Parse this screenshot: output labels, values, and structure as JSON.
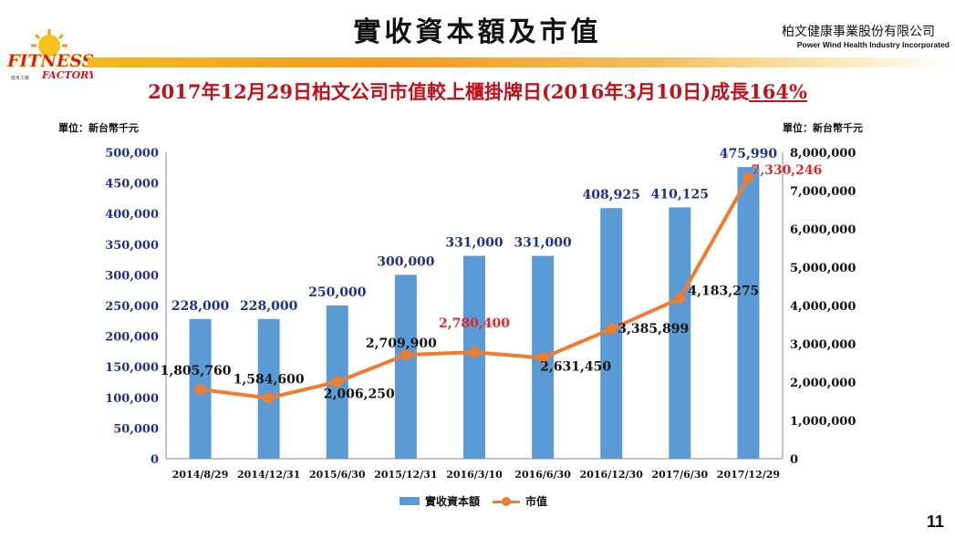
{
  "header": {
    "title": "實收資本額及市值",
    "company_cn": "柏文健康事業股份有限公司",
    "company_en": "Power Wind Health Industry Incorporated",
    "logo_text": "FITNESS",
    "logo_subtext": "FACTORY",
    "logo_tiny_text": "健身工廠"
  },
  "subtitle": {
    "main": "2017年12月29日柏文公司市值較上櫃掛牌日(2016年3月10日)成長",
    "pct": "164%"
  },
  "units": {
    "left": "單位：新台幣千元",
    "right": "單位：新台幣千元"
  },
  "page_number": "11",
  "colors": {
    "bar": "#5b9bd5",
    "line": "#ed7d31",
    "bar_label": "#1f2f8f",
    "title_red": "#c0121a",
    "highlight_label": "#e0282e"
  },
  "chart_data": {
    "type": "bar",
    "categories": [
      "2014/8/29",
      "2014/12/31",
      "2015/6/30",
      "2015/12/31",
      "2016/3/10",
      "2016/6/30",
      "2016/12/30",
      "2017/6/30",
      "2017/12/29"
    ],
    "series": [
      {
        "name": "實收資本額",
        "type": "bar",
        "axis": "left",
        "values": [
          228000,
          228000,
          250000,
          300000,
          331000,
          331000,
          408925,
          410125,
          475990
        ],
        "labels": [
          "228,000",
          "228,000",
          "250,000",
          "300,000",
          "331,000",
          "331,000",
          "408,925",
          "410,125",
          "475,990"
        ]
      },
      {
        "name": "市值",
        "type": "line",
        "axis": "right",
        "values": [
          1805760,
          1584600,
          2006250,
          2709900,
          2780400,
          2631450,
          3385899,
          4183275,
          7330246
        ],
        "labels": [
          "1,805,760",
          "1,584,600",
          "2,006,250",
          "2,709,900",
          "2,780,400",
          "2,631,450",
          "3,385,899",
          "4,183,275",
          "7,330,246"
        ],
        "highlighted": [
          false,
          false,
          false,
          false,
          true,
          false,
          false,
          false,
          true
        ]
      }
    ],
    "ylim_left": [
      0,
      500000
    ],
    "yticks_left": [
      "0",
      "50,000",
      "100,000",
      "150,000",
      "200,000",
      "250,000",
      "300,000",
      "350,000",
      "400,000",
      "450,000",
      "500,000"
    ],
    "ylim_right": [
      0,
      8000000
    ],
    "yticks_right": [
      "0",
      "1,000,000",
      "2,000,000",
      "3,000,000",
      "4,000,000",
      "5,000,000",
      "6,000,000",
      "7,000,000",
      "8,000,000"
    ],
    "grid": false,
    "legend_position": "bottom"
  }
}
